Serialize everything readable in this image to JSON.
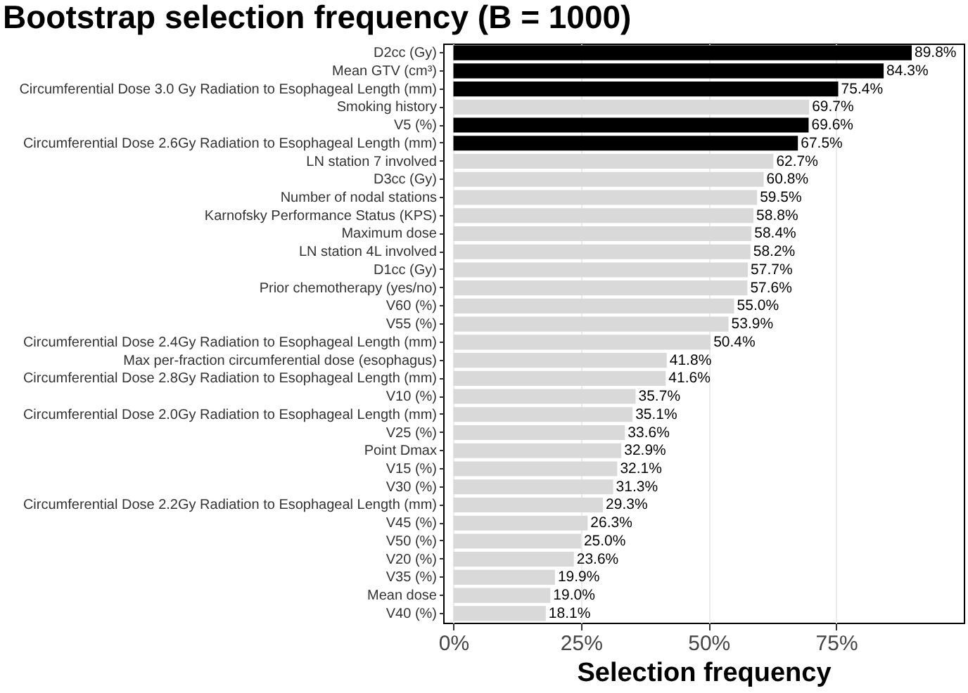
{
  "chart_data": {
    "type": "bar",
    "orientation": "horizontal",
    "title": "Bootstrap selection frequency (B = 1000)",
    "xlabel": "Selection frequency",
    "categories": [
      "D2cc (Gy)",
      "Mean GTV (cm³)",
      "Circumferential Dose 3.0 Gy Radiation to Esophageal Length (mm)",
      "Smoking history",
      "V5 (%)",
      "Circumferential Dose 2.6Gy Radiation to Esophageal Length (mm)",
      "LN station 7 involved",
      "D3cc (Gy)",
      "Number of nodal stations",
      "Karnofsky Performance Status (KPS)",
      "Maximum dose",
      "LN station 4L involved",
      "D1cc (Gy)",
      "Prior chemotherapy (yes/no)",
      "V60 (%)",
      "V55 (%)",
      "Circumferential Dose 2.4Gy Radiation to Esophageal Length (mm)",
      "Max per-fraction circumferential dose (esophagus)",
      "Circumferential Dose 2.8Gy Radiation to Esophageal Length (mm)",
      "V10 (%)",
      "Circumferential Dose 2.0Gy Radiation to Esophageal Length (mm)",
      "V25 (%)",
      "Point Dmax",
      "V15 (%)",
      "V30 (%)",
      "Circumferential Dose 2.2Gy Radiation to Esophageal Length (mm)",
      "V45 (%)",
      "V50 (%)",
      "V20 (%)",
      "V35 (%)",
      "Mean dose",
      "V40 (%)"
    ],
    "values": [
      89.8,
      84.3,
      75.4,
      69.7,
      69.6,
      67.5,
      62.7,
      60.8,
      59.5,
      58.8,
      58.4,
      58.2,
      57.7,
      57.6,
      55.0,
      53.9,
      50.4,
      41.8,
      41.6,
      35.7,
      35.1,
      33.6,
      32.9,
      32.1,
      31.3,
      29.3,
      26.3,
      25.0,
      23.6,
      19.9,
      19.0,
      18.1
    ],
    "value_labels": [
      "89.8%",
      "84.3%",
      "75.4%",
      "69.7%",
      "69.6%",
      "67.5%",
      "62.7%",
      "60.8%",
      "59.5%",
      "58.8%",
      "58.4%",
      "58.2%",
      "57.7%",
      "57.6%",
      "55.0%",
      "53.9%",
      "50.4%",
      "41.8%",
      "41.6%",
      "35.7%",
      "35.1%",
      "33.6%",
      "32.9%",
      "32.1%",
      "31.3%",
      "29.3%",
      "26.3%",
      "25.0%",
      "23.6%",
      "19.9%",
      "19.0%",
      "18.1%"
    ],
    "colors": [
      "#000000",
      "#000000",
      "#000000",
      "#d9d9d9",
      "#000000",
      "#000000",
      "#d9d9d9",
      "#d9d9d9",
      "#d9d9d9",
      "#d9d9d9",
      "#d9d9d9",
      "#d9d9d9",
      "#d9d9d9",
      "#d9d9d9",
      "#d9d9d9",
      "#d9d9d9",
      "#d9d9d9",
      "#d9d9d9",
      "#d9d9d9",
      "#d9d9d9",
      "#d9d9d9",
      "#d9d9d9",
      "#d9d9d9",
      "#d9d9d9",
      "#d9d9d9",
      "#d9d9d9",
      "#d9d9d9",
      "#d9d9d9",
      "#d9d9d9",
      "#d9d9d9",
      "#d9d9d9",
      "#d9d9d9"
    ],
    "xlim": [
      -2,
      100
    ],
    "xticks": [
      {
        "value": 0,
        "label": "0%"
      },
      {
        "value": 25,
        "label": "25%"
      },
      {
        "value": 50,
        "label": "50%"
      },
      {
        "value": 75,
        "label": "75%"
      }
    ],
    "grid": "x"
  }
}
